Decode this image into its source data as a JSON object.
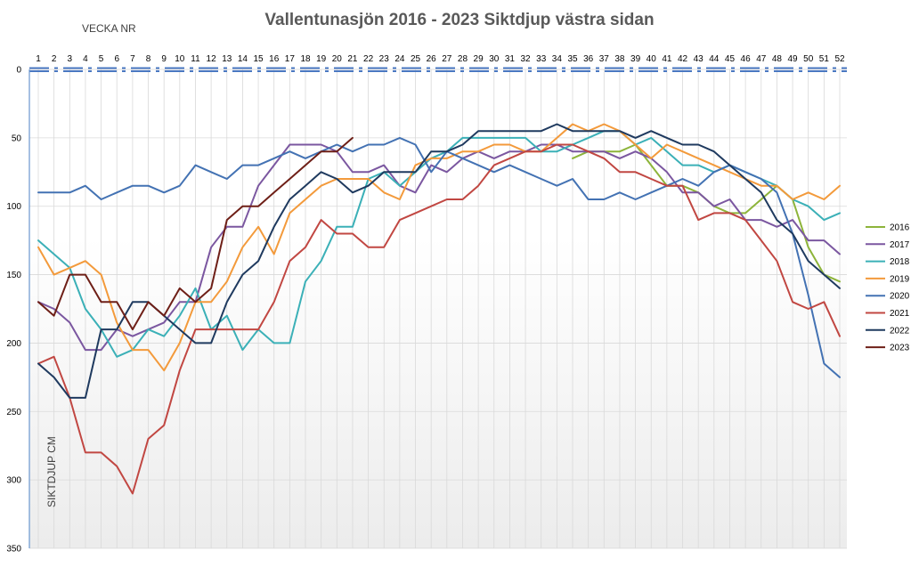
{
  "chart_data": {
    "type": "line",
    "title": "Vallentunasjön 2016 - 2023 Siktdjup västra sidan",
    "xlabel": "VECKA NR",
    "ylabel": "SIKTDJUP CM",
    "xlim": [
      1,
      52
    ],
    "ylim": [
      0,
      350
    ],
    "y_inverted": true,
    "x_axis_position": "top",
    "y_ticks": [
      0,
      50,
      100,
      150,
      200,
      250,
      300,
      350
    ],
    "grid": true,
    "legend_position": "right",
    "x": [
      1,
      2,
      3,
      4,
      5,
      6,
      7,
      8,
      9,
      10,
      11,
      12,
      13,
      14,
      15,
      16,
      17,
      18,
      19,
      20,
      21,
      22,
      23,
      24,
      25,
      26,
      27,
      28,
      29,
      30,
      31,
      32,
      33,
      34,
      35,
      36,
      37,
      38,
      39,
      40,
      41,
      42,
      43,
      44,
      45,
      46,
      47,
      48,
      49,
      50,
      51,
      52
    ],
    "series": [
      {
        "name": "2016",
        "color": "#8db43a",
        "values": [
          null,
          null,
          null,
          null,
          null,
          null,
          null,
          null,
          null,
          null,
          null,
          null,
          null,
          null,
          null,
          null,
          null,
          null,
          null,
          null,
          null,
          null,
          null,
          null,
          null,
          null,
          null,
          null,
          null,
          null,
          null,
          null,
          null,
          null,
          65,
          60,
          60,
          60,
          55,
          70,
          85,
          85,
          90,
          100,
          105,
          105,
          95,
          85,
          95,
          130,
          150,
          155
        ]
      },
      {
        "name": "2017",
        "color": "#7b57a0",
        "values": [
          170,
          175,
          185,
          205,
          205,
          190,
          195,
          190,
          185,
          170,
          170,
          130,
          115,
          115,
          85,
          70,
          55,
          55,
          55,
          60,
          75,
          75,
          70,
          85,
          90,
          70,
          75,
          65,
          60,
          65,
          60,
          60,
          55,
          55,
          60,
          60,
          60,
          65,
          60,
          65,
          75,
          90,
          90,
          100,
          95,
          110,
          110,
          115,
          110,
          125,
          125,
          135
        ]
      },
      {
        "name": "2018",
        "color": "#3bb0b7",
        "values": [
          125,
          135,
          145,
          175,
          190,
          210,
          205,
          190,
          195,
          180,
          160,
          190,
          180,
          205,
          190,
          200,
          200,
          155,
          140,
          115,
          115,
          80,
          75,
          85,
          75,
          65,
          60,
          50,
          50,
          50,
          50,
          50,
          60,
          60,
          55,
          50,
          45,
          45,
          55,
          50,
          60,
          70,
          70,
          75,
          70,
          75,
          80,
          85,
          95,
          100,
          110,
          105
        ]
      },
      {
        "name": "2019",
        "color": "#f39a3b",
        "values": [
          130,
          150,
          145,
          140,
          150,
          185,
          205,
          205,
          220,
          200,
          170,
          170,
          155,
          130,
          115,
          135,
          105,
          95,
          85,
          80,
          80,
          80,
          90,
          95,
          70,
          65,
          65,
          60,
          60,
          55,
          55,
          60,
          60,
          50,
          40,
          45,
          40,
          45,
          55,
          65,
          55,
          60,
          65,
          70,
          75,
          80,
          85,
          85,
          95,
          90,
          95,
          85
        ]
      },
      {
        "name": "2020",
        "color": "#4372b3",
        "values": [
          90,
          90,
          90,
          85,
          95,
          90,
          85,
          85,
          90,
          85,
          70,
          75,
          80,
          70,
          70,
          65,
          60,
          65,
          60,
          55,
          60,
          55,
          55,
          50,
          55,
          75,
          60,
          65,
          70,
          75,
          70,
          75,
          80,
          85,
          80,
          95,
          95,
          90,
          95,
          90,
          85,
          80,
          85,
          75,
          70,
          75,
          80,
          90,
          120,
          165,
          215,
          225
        ]
      },
      {
        "name": "2021",
        "color": "#c14742",
        "values": [
          215,
          210,
          240,
          280,
          280,
          290,
          310,
          270,
          260,
          220,
          190,
          190,
          190,
          190,
          190,
          170,
          140,
          130,
          110,
          120,
          120,
          130,
          130,
          110,
          105,
          100,
          95,
          95,
          85,
          70,
          65,
          60,
          60,
          55,
          55,
          60,
          65,
          75,
          75,
          80,
          85,
          85,
          110,
          105,
          105,
          110,
          125,
          140,
          170,
          175,
          170,
          195
        ]
      },
      {
        "name": "2022",
        "color": "#1f3a5f",
        "values": [
          215,
          225,
          240,
          240,
          190,
          190,
          170,
          170,
          180,
          190,
          200,
          200,
          170,
          150,
          140,
          115,
          95,
          85,
          75,
          80,
          90,
          85,
          75,
          75,
          75,
          60,
          60,
          55,
          45,
          45,
          45,
          45,
          45,
          40,
          45,
          45,
          45,
          45,
          50,
          45,
          50,
          55,
          55,
          60,
          70,
          80,
          90,
          110,
          120,
          140,
          150,
          160
        ]
      },
      {
        "name": "2023",
        "color": "#6e1f17",
        "values": [
          170,
          180,
          150,
          150,
          170,
          170,
          190,
          170,
          180,
          160,
          170,
          160,
          110,
          100,
          100,
          90,
          80,
          70,
          60,
          60,
          50,
          null,
          null,
          null,
          null,
          null,
          null,
          null,
          null,
          null,
          null,
          null,
          null,
          null,
          null,
          null,
          null,
          null,
          null,
          null,
          null,
          null,
          null,
          null,
          null,
          null,
          null,
          null,
          null,
          null,
          null,
          null
        ]
      }
    ]
  }
}
